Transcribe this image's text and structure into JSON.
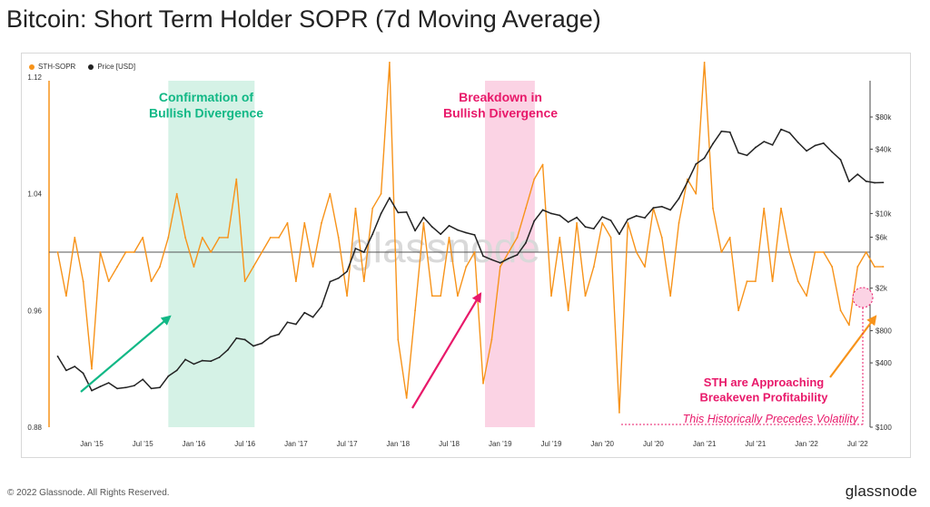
{
  "title": "Bitcoin: Short Term Holder SOPR (7d Moving Average)",
  "footer": "© 2022 Glassnode. All Rights Reserved.",
  "brand": "glassnode",
  "watermark": "glassnode",
  "colors": {
    "sopr": "#f7931a",
    "price": "#222222",
    "green": "#12b886",
    "pink": "#e8196a",
    "band_green": "#d5f2e6",
    "band_pink": "#fbd3e4"
  },
  "chart_data": {
    "type": "line",
    "legend": [
      {
        "name": "STH-SOPR",
        "color": "#f7931a"
      },
      {
        "name": "Price [USD]",
        "color": "#222222"
      }
    ],
    "x_ticks": [
      "Jan '15",
      "Jul '15",
      "Jan '16",
      "Jul '16",
      "Jan '17",
      "Jul '17",
      "Jan '18",
      "Jul '18",
      "Jan '19",
      "Jul '19",
      "Jan '20",
      "Jul '20",
      "Jan '21",
      "Jul '21",
      "Jan '22",
      "Jul '22"
    ],
    "y_left_ticks": [
      "1.12",
      "1.04",
      "0.96",
      "0.88"
    ],
    "y_left_range": [
      0.88,
      1.12
    ],
    "y_right_ticks": [
      "$80k",
      "$40k",
      "$10k",
      "$6k",
      "$2k",
      "$800",
      "$400",
      "$100"
    ],
    "y_right_scale": "log",
    "reference_line": 1.0,
    "annotations": {
      "confirmation": "Confirmation of\nBullish Divergence",
      "breakdown": "Breakdown in\nBullish Divergence",
      "approaching": "STH are Approaching\nBreakeven Profitability",
      "volatility": "This Historically Precedes Volatility"
    },
    "series": [
      {
        "name": "STH-SOPR",
        "color": "#f7931a",
        "values": [
          [
            "2014-09",
            1.0
          ],
          [
            "2014-10",
            0.97
          ],
          [
            "2014-11",
            1.01
          ],
          [
            "2014-12",
            0.98
          ],
          [
            "2015-01",
            0.92
          ],
          [
            "2015-02",
            1.0
          ],
          [
            "2015-03",
            0.98
          ],
          [
            "2015-04",
            0.99
          ],
          [
            "2015-05",
            1.0
          ],
          [
            "2015-06",
            1.0
          ],
          [
            "2015-07",
            1.01
          ],
          [
            "2015-08",
            0.98
          ],
          [
            "2015-09",
            0.99
          ],
          [
            "2015-10",
            1.01
          ],
          [
            "2015-11",
            1.04
          ],
          [
            "2015-12",
            1.01
          ],
          [
            "2016-01",
            0.99
          ],
          [
            "2016-02",
            1.01
          ],
          [
            "2016-03",
            1.0
          ],
          [
            "2016-04",
            1.01
          ],
          [
            "2016-05",
            1.01
          ],
          [
            "2016-06",
            1.05
          ],
          [
            "2016-07",
            0.98
          ],
          [
            "2016-08",
            0.99
          ],
          [
            "2016-09",
            1.0
          ],
          [
            "2016-10",
            1.01
          ],
          [
            "2016-11",
            1.01
          ],
          [
            "2016-12",
            1.02
          ],
          [
            "2017-01",
            0.98
          ],
          [
            "2017-02",
            1.02
          ],
          [
            "2017-03",
            0.99
          ],
          [
            "2017-04",
            1.02
          ],
          [
            "2017-05",
            1.04
          ],
          [
            "2017-06",
            1.01
          ],
          [
            "2017-07",
            0.97
          ],
          [
            "2017-08",
            1.03
          ],
          [
            "2017-09",
            0.98
          ],
          [
            "2017-10",
            1.03
          ],
          [
            "2017-11",
            1.04
          ],
          [
            "2017-12",
            1.13
          ],
          [
            "2018-01",
            0.94
          ],
          [
            "2018-02",
            0.9
          ],
          [
            "2018-03",
            0.96
          ],
          [
            "2018-04",
            1.02
          ],
          [
            "2018-05",
            0.97
          ],
          [
            "2018-06",
            0.97
          ],
          [
            "2018-07",
            1.01
          ],
          [
            "2018-08",
            0.97
          ],
          [
            "2018-09",
            0.99
          ],
          [
            "2018-10",
            1.0
          ],
          [
            "2018-11",
            0.91
          ],
          [
            "2018-12",
            0.94
          ],
          [
            "2019-01",
            0.99
          ],
          [
            "2019-02",
            1.0
          ],
          [
            "2019-03",
            1.01
          ],
          [
            "2019-04",
            1.03
          ],
          [
            "2019-05",
            1.05
          ],
          [
            "2019-06",
            1.06
          ],
          [
            "2019-07",
            0.97
          ],
          [
            "2019-08",
            1.01
          ],
          [
            "2019-09",
            0.96
          ],
          [
            "2019-10",
            1.02
          ],
          [
            "2019-11",
            0.97
          ],
          [
            "2019-12",
            0.99
          ],
          [
            "2020-01",
            1.02
          ],
          [
            "2020-02",
            1.01
          ],
          [
            "2020-03",
            0.89
          ],
          [
            "2020-04",
            1.02
          ],
          [
            "2020-05",
            1.0
          ],
          [
            "2020-06",
            0.99
          ],
          [
            "2020-07",
            1.03
          ],
          [
            "2020-08",
            1.01
          ],
          [
            "2020-09",
            0.97
          ],
          [
            "2020-10",
            1.02
          ],
          [
            "2020-11",
            1.05
          ],
          [
            "2020-12",
            1.04
          ],
          [
            "2021-01",
            1.13
          ],
          [
            "2021-02",
            1.03
          ],
          [
            "2021-03",
            1.0
          ],
          [
            "2021-04",
            1.01
          ],
          [
            "2021-05",
            0.96
          ],
          [
            "2021-06",
            0.98
          ],
          [
            "2021-07",
            0.98
          ],
          [
            "2021-08",
            1.03
          ],
          [
            "2021-09",
            0.98
          ],
          [
            "2021-10",
            1.03
          ],
          [
            "2021-11",
            1.0
          ],
          [
            "2021-12",
            0.98
          ],
          [
            "2022-01",
            0.97
          ],
          [
            "2022-02",
            1.0
          ],
          [
            "2022-03",
            1.0
          ],
          [
            "2022-04",
            0.99
          ],
          [
            "2022-05",
            0.96
          ],
          [
            "2022-06",
            0.95
          ],
          [
            "2022-07",
            0.99
          ],
          [
            "2022-08",
            1.0
          ],
          [
            "2022-09",
            0.99
          ],
          [
            "2022-10",
            0.99
          ]
        ]
      },
      {
        "name": "Price [USD]",
        "color": "#222222",
        "values": [
          [
            "2014-09",
            460
          ],
          [
            "2014-10",
            340
          ],
          [
            "2014-11",
            370
          ],
          [
            "2014-12",
            320
          ],
          [
            "2015-01",
            220
          ],
          [
            "2015-02",
            240
          ],
          [
            "2015-03",
            260
          ],
          [
            "2015-04",
            230
          ],
          [
            "2015-05",
            235
          ],
          [
            "2015-06",
            245
          ],
          [
            "2015-07",
            280
          ],
          [
            "2015-08",
            230
          ],
          [
            "2015-09",
            235
          ],
          [
            "2015-10",
            300
          ],
          [
            "2015-11",
            340
          ],
          [
            "2015-12",
            430
          ],
          [
            "2016-01",
            390
          ],
          [
            "2016-02",
            420
          ],
          [
            "2016-03",
            415
          ],
          [
            "2016-04",
            450
          ],
          [
            "2016-05",
            530
          ],
          [
            "2016-06",
            680
          ],
          [
            "2016-07",
            660
          ],
          [
            "2016-08",
            575
          ],
          [
            "2016-09",
            610
          ],
          [
            "2016-10",
            700
          ],
          [
            "2016-11",
            740
          ],
          [
            "2016-12",
            960
          ],
          [
            "2017-01",
            920
          ],
          [
            "2017-02",
            1180
          ],
          [
            "2017-03",
            1070
          ],
          [
            "2017-04",
            1350
          ],
          [
            "2017-05",
            2300
          ],
          [
            "2017-06",
            2480
          ],
          [
            "2017-07",
            2870
          ],
          [
            "2017-08",
            4700
          ],
          [
            "2017-09",
            4340
          ],
          [
            "2017-10",
            6400
          ],
          [
            "2017-11",
            10000
          ],
          [
            "2017-12",
            14000
          ],
          [
            "2018-01",
            10200
          ],
          [
            "2018-02",
            10300
          ],
          [
            "2018-03",
            6900
          ],
          [
            "2018-04",
            9200
          ],
          [
            "2018-05",
            7500
          ],
          [
            "2018-06",
            6400
          ],
          [
            "2018-07",
            7700
          ],
          [
            "2018-08",
            7000
          ],
          [
            "2018-09",
            6600
          ],
          [
            "2018-10",
            6300
          ],
          [
            "2018-11",
            4000
          ],
          [
            "2018-12",
            3700
          ],
          [
            "2019-01",
            3450
          ],
          [
            "2019-02",
            3800
          ],
          [
            "2019-03",
            4100
          ],
          [
            "2019-04",
            5300
          ],
          [
            "2019-05",
            8500
          ],
          [
            "2019-06",
            10800
          ],
          [
            "2019-07",
            10000
          ],
          [
            "2019-08",
            9600
          ],
          [
            "2019-09",
            8300
          ],
          [
            "2019-10",
            9200
          ],
          [
            "2019-11",
            7500
          ],
          [
            "2019-12",
            7200
          ],
          [
            "2020-01",
            9300
          ],
          [
            "2020-02",
            8600
          ],
          [
            "2020-03",
            6400
          ],
          [
            "2020-04",
            8800
          ],
          [
            "2020-05",
            9500
          ],
          [
            "2020-06",
            9100
          ],
          [
            "2020-07",
            11300
          ],
          [
            "2020-08",
            11600
          ],
          [
            "2020-09",
            10800
          ],
          [
            "2020-10",
            13800
          ],
          [
            "2020-11",
            19700
          ],
          [
            "2020-12",
            29000
          ],
          [
            "2021-01",
            33000
          ],
          [
            "2021-02",
            45000
          ],
          [
            "2021-03",
            58800
          ],
          [
            "2021-04",
            57700
          ],
          [
            "2021-05",
            37000
          ],
          [
            "2021-06",
            35000
          ],
          [
            "2021-07",
            41500
          ],
          [
            "2021-08",
            47100
          ],
          [
            "2021-09",
            43800
          ],
          [
            "2021-10",
            61300
          ],
          [
            "2021-11",
            57000
          ],
          [
            "2021-12",
            46300
          ],
          [
            "2022-01",
            38500
          ],
          [
            "2022-02",
            43200
          ],
          [
            "2022-03",
            45500
          ],
          [
            "2022-04",
            37700
          ],
          [
            "2022-05",
            31800
          ],
          [
            "2022-06",
            19900
          ],
          [
            "2022-07",
            23300
          ],
          [
            "2022-08",
            20000
          ],
          [
            "2022-09",
            19400
          ],
          [
            "2022-10",
            19500
          ]
        ]
      }
    ]
  }
}
